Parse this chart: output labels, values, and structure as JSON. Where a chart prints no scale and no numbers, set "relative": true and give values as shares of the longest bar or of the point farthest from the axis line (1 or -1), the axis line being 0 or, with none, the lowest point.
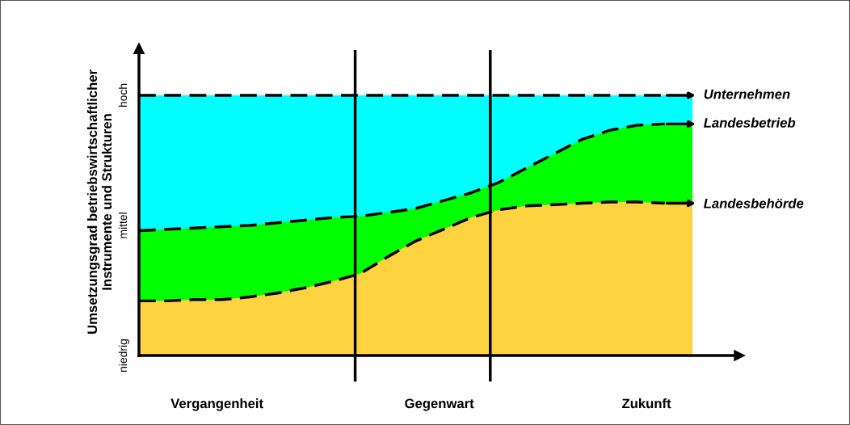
{
  "chart_data": {
    "type": "area",
    "relative": true,
    "ylabel": "Umsetzungsgrad betriebswirtschaftlicher\nInstrumente und Strukturen",
    "categories": [
      null,
      null,
      null,
      null,
      null,
      null,
      null,
      null,
      null,
      null,
      null,
      null,
      null,
      null,
      null,
      null,
      null,
      null,
      null,
      null,
      null
    ],
    "series": [
      {
        "name": "Unternehmen",
        "color": "#00ffff",
        "values": [
          1,
          1,
          1,
          1,
          1,
          1,
          1,
          1,
          1,
          1,
          1,
          1,
          1,
          1,
          1,
          1,
          1,
          1,
          1,
          1,
          1
        ]
      },
      {
        "name": "Landesbetrieb",
        "color": "#00ff00",
        "values": [
          0.48,
          0.485,
          0.49,
          0.495,
          0.5,
          0.51,
          0.52,
          0.53,
          0.535,
          0.55,
          0.565,
          0.595,
          0.625,
          0.665,
          0.72,
          0.775,
          0.83,
          0.865,
          0.885,
          0.89,
          0.89
        ]
      },
      {
        "name": "Landesbehörde",
        "color": "#ffd23f",
        "values": [
          0.21,
          0.21,
          0.215,
          0.215,
          0.225,
          0.24,
          0.26,
          0.285,
          0.315,
          0.38,
          0.44,
          0.485,
          0.53,
          0.56,
          0.575,
          0.58,
          0.585,
          0.59,
          0.59,
          0.585,
          0.58
        ]
      }
    ],
    "annotations": [
      "Vergangenheit",
      "Gegenwart",
      "Zukunft",
      "niedrig",
      "mittel",
      "hoch"
    ],
    "line_style": "dashed"
  }
}
